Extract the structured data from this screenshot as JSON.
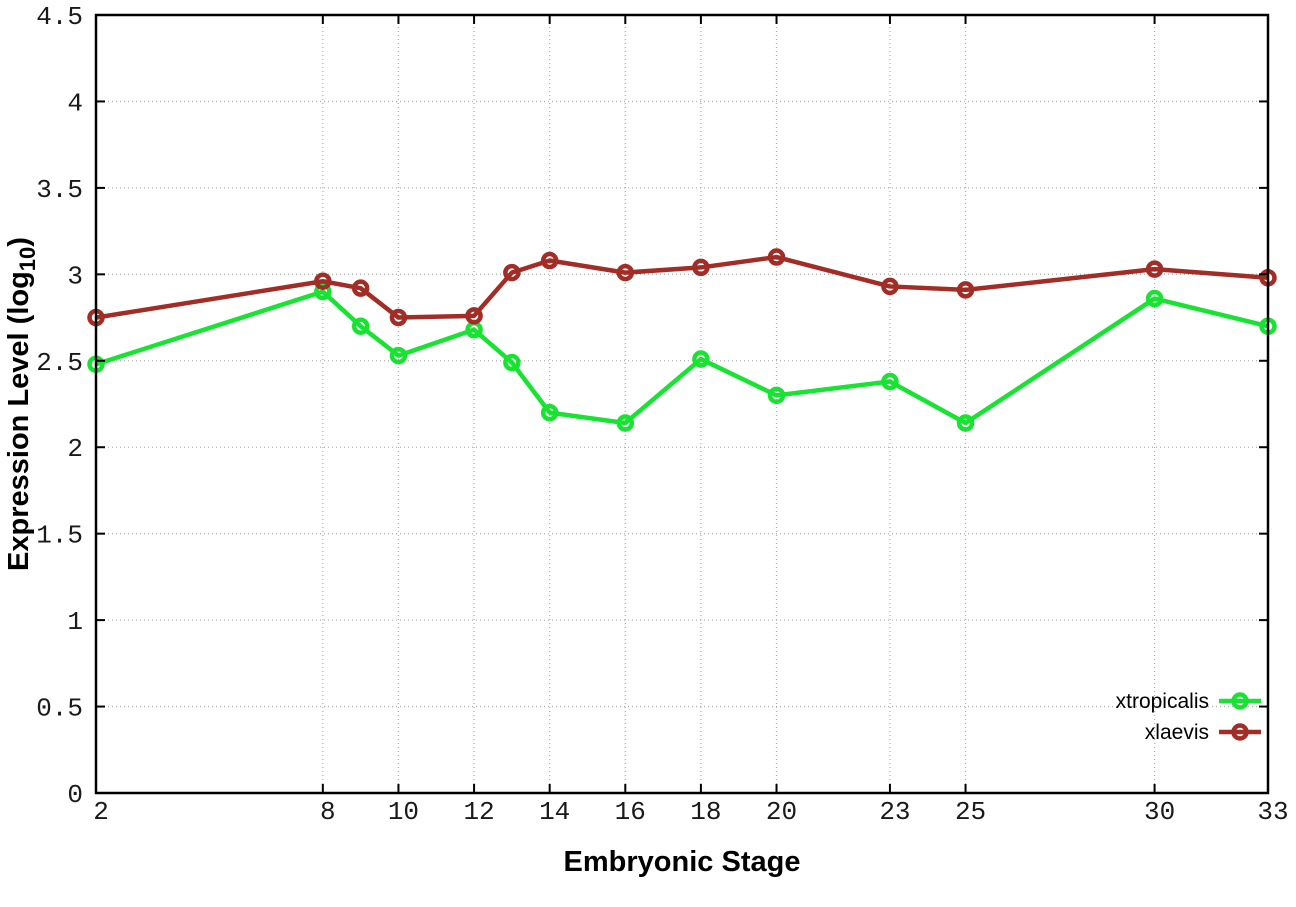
{
  "page": {
    "background": "#ffffff"
  },
  "chart_data": {
    "type": "line",
    "title": "",
    "xlabel": "Embryonic Stage",
    "ylabel": "Expression Level (log10)",
    "ylabel_parts": {
      "prefix": "Expression Level (log",
      "subscript": "10",
      "suffix": ")"
    },
    "xlim": [
      2,
      33
    ],
    "ylim": [
      0,
      4.5
    ],
    "grid": true,
    "grid_style": "dotted",
    "legend_position": "inside bottom-right",
    "marker": "open-circle",
    "x": [
      2,
      8,
      9,
      10,
      12,
      13,
      14,
      16,
      18,
      20,
      23,
      25,
      30,
      33
    ],
    "series": [
      {
        "name": "xtropicalis",
        "color": "#19e332",
        "values": [
          2.48,
          2.9,
          2.7,
          2.53,
          2.68,
          2.49,
          2.2,
          2.14,
          2.51,
          2.3,
          2.38,
          2.14,
          2.86,
          2.7
        ]
      },
      {
        "name": "xlaevis",
        "color": "#a22d26",
        "values": [
          2.75,
          2.96,
          2.92,
          2.75,
          2.76,
          3.01,
          3.08,
          3.01,
          3.04,
          3.1,
          2.93,
          2.91,
          3.03,
          2.98
        ]
      }
    ],
    "xticks": {
      "values": [
        2,
        8,
        10,
        12,
        14,
        16,
        18,
        20,
        23,
        25,
        30,
        33
      ],
      "labels": [
        "2",
        "8",
        "10",
        "12",
        "14",
        "16",
        "18",
        "20",
        "23",
        "25",
        "30",
        "33"
      ]
    },
    "yticks": {
      "values": [
        0,
        0.5,
        1,
        1.5,
        2,
        2.5,
        3,
        3.5,
        4,
        4.5
      ],
      "labels": [
        "0",
        "0.5",
        "1",
        "1.5",
        "2",
        "2.5",
        "3",
        "3.5",
        "4",
        "4.5"
      ]
    },
    "axis_color": "#000000",
    "grid_color": "#b0b0b0"
  }
}
